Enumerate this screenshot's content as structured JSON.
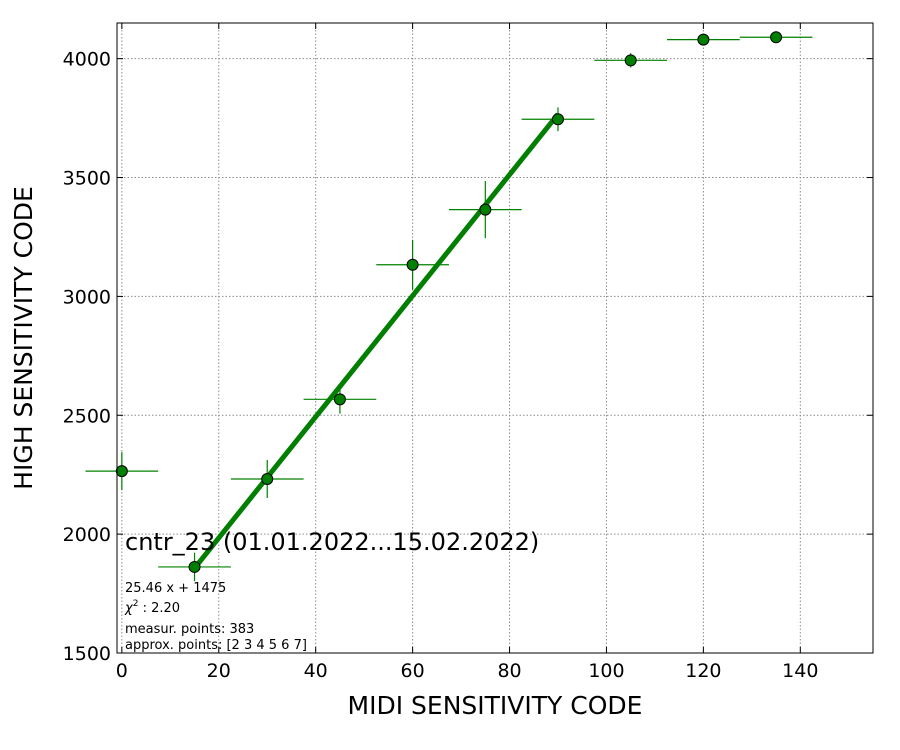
{
  "chart_data": {
    "type": "scatter",
    "xlabel": "MIDI SENSITIVITY CODE",
    "ylabel": "HIGH SENSITIVITY CODE",
    "xlim": [
      -1,
      155
    ],
    "ylim": [
      1500,
      4150
    ],
    "xticks": [
      0,
      20,
      40,
      60,
      80,
      100,
      120,
      140
    ],
    "yticks": [
      1500,
      2000,
      2500,
      3000,
      3500,
      4000
    ],
    "grid": true,
    "colors": {
      "marker": "#008000",
      "line": "#007f00",
      "errorbar": "#008000"
    },
    "points": [
      {
        "x": 0,
        "y": 2265,
        "xerr": 7.5,
        "yerr": 80
      },
      {
        "x": 15,
        "y": 1862,
        "xerr": 7.5,
        "yerr": 60
      },
      {
        "x": 30,
        "y": 2232,
        "xerr": 7.5,
        "yerr": 80
      },
      {
        "x": 45,
        "y": 2567,
        "xerr": 7.5,
        "yerr": 60
      },
      {
        "x": 60,
        "y": 3133,
        "xerr": 7.5,
        "yerr": 105
      },
      {
        "x": 75,
        "y": 3365,
        "xerr": 7.5,
        "yerr": 120
      },
      {
        "x": 90,
        "y": 3745,
        "xerr": 7.5,
        "yerr": 50
      },
      {
        "x": 105,
        "y": 3993,
        "xerr": 7.5,
        "yerr": 30
      },
      {
        "x": 120,
        "y": 4080,
        "xerr": 7.5,
        "yerr": 15
      },
      {
        "x": 135,
        "y": 4090,
        "xerr": 7.5,
        "yerr": 10
      }
    ],
    "fit": {
      "slope": 25.46,
      "intercept": 1475,
      "x_range": [
        15,
        90
      ]
    },
    "annotations": {
      "title": "cntr_23 (01.01.2022...15.02.2022)",
      "equation": "25.46 x + 1475",
      "chi2_prefix": "χ",
      "chi2_exp": "2",
      "chi2_value": " : 2.20",
      "measur": "measur. points: 383",
      "approx": "approx. points: [2 3 4 5 6 7]"
    }
  }
}
